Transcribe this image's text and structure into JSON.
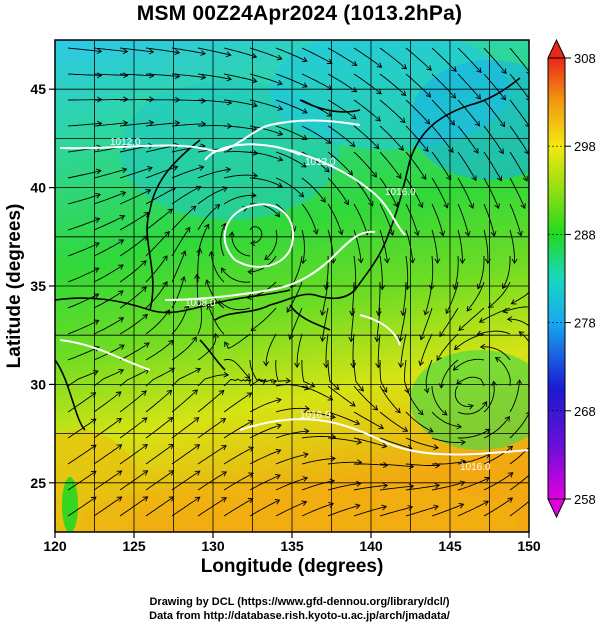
{
  "title": "MSM 00Z24Apr2024 (1013.2hPa)",
  "x_axis": {
    "label": "Longitude (degrees)",
    "ticks": [
      "120",
      "125",
      "130",
      "135",
      "140",
      "145",
      "150"
    ]
  },
  "y_axis": {
    "label": "Latitude  (degrees)",
    "ticks": [
      "25",
      "30",
      "35",
      "40",
      "45"
    ]
  },
  "colorbar": {
    "ticks": [
      "258",
      "268",
      "278",
      "288",
      "298",
      "308"
    ],
    "colors": [
      "#d800d8",
      "#1a1ad0",
      "#18c8f0",
      "#22d822",
      "#f2ea10",
      "#e83a1a"
    ]
  },
  "contour_labels": [
    "1012.0",
    "1008.0",
    "1012.0",
    "1016.0",
    "1016.0",
    "1016.0"
  ],
  "map": {
    "lon_range": [
      120,
      150
    ],
    "lat_range": [
      22.5,
      47.5
    ],
    "lines": "streamlines",
    "contours": "isobars (white)"
  },
  "credits": [
    "Drawing by DCL (https://www.gfd-dennou.org/library/dcl/)",
    "Data from http://database.rish.kyoto-u.ac.jp/arch/jmadata/"
  ]
}
